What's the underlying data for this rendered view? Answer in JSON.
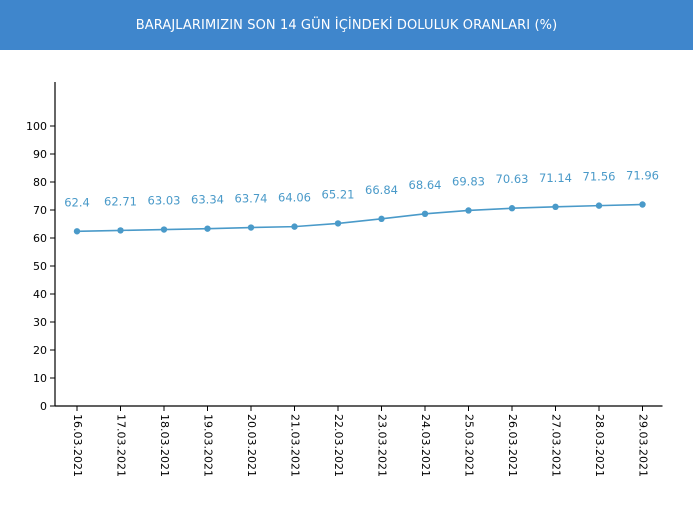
{
  "header": {
    "title": "BARAJLARIMIZIN SON 14 GÜN İÇİNDEKİ DOLULUK ORANLARI (%)"
  },
  "colors": {
    "header_bg": "#3f86cc",
    "line": "#4a9ac9",
    "label": "#4a9ac9",
    "axis": "#000000"
  },
  "chart_data": {
    "type": "line",
    "title": "BARAJLARIMIZIN SON 14 GÜN İÇİNDEKİ DOLULUK ORANLARI (%)",
    "xlabel": "",
    "ylabel": "",
    "ylim": [
      0,
      100
    ],
    "yticks": [
      "0",
      "10",
      "20",
      "30",
      "40",
      "50",
      "60",
      "70",
      "80",
      "90",
      "100"
    ],
    "grid": false,
    "categories": [
      "16.03.2021",
      "17.03.2021",
      "18.03.2021",
      "19.03.2021",
      "20.03.2021",
      "21.03.2021",
      "22.03.2021",
      "23.03.2021",
      "24.03.2021",
      "25.03.2021",
      "26.03.2021",
      "27.03.2021",
      "28.03.2021",
      "29.03.2021"
    ],
    "values": [
      62.4,
      62.71,
      63.03,
      63.34,
      63.74,
      64.06,
      65.21,
      66.84,
      68.64,
      69.83,
      70.63,
      71.14,
      71.56,
      71.96
    ],
    "value_labels": [
      "62.4",
      "62.71",
      "63.03",
      "63.34",
      "63.74",
      "64.06",
      "65.21",
      "66.84",
      "68.64",
      "69.83",
      "70.63",
      "71.14",
      "71.56",
      "71.96"
    ]
  }
}
